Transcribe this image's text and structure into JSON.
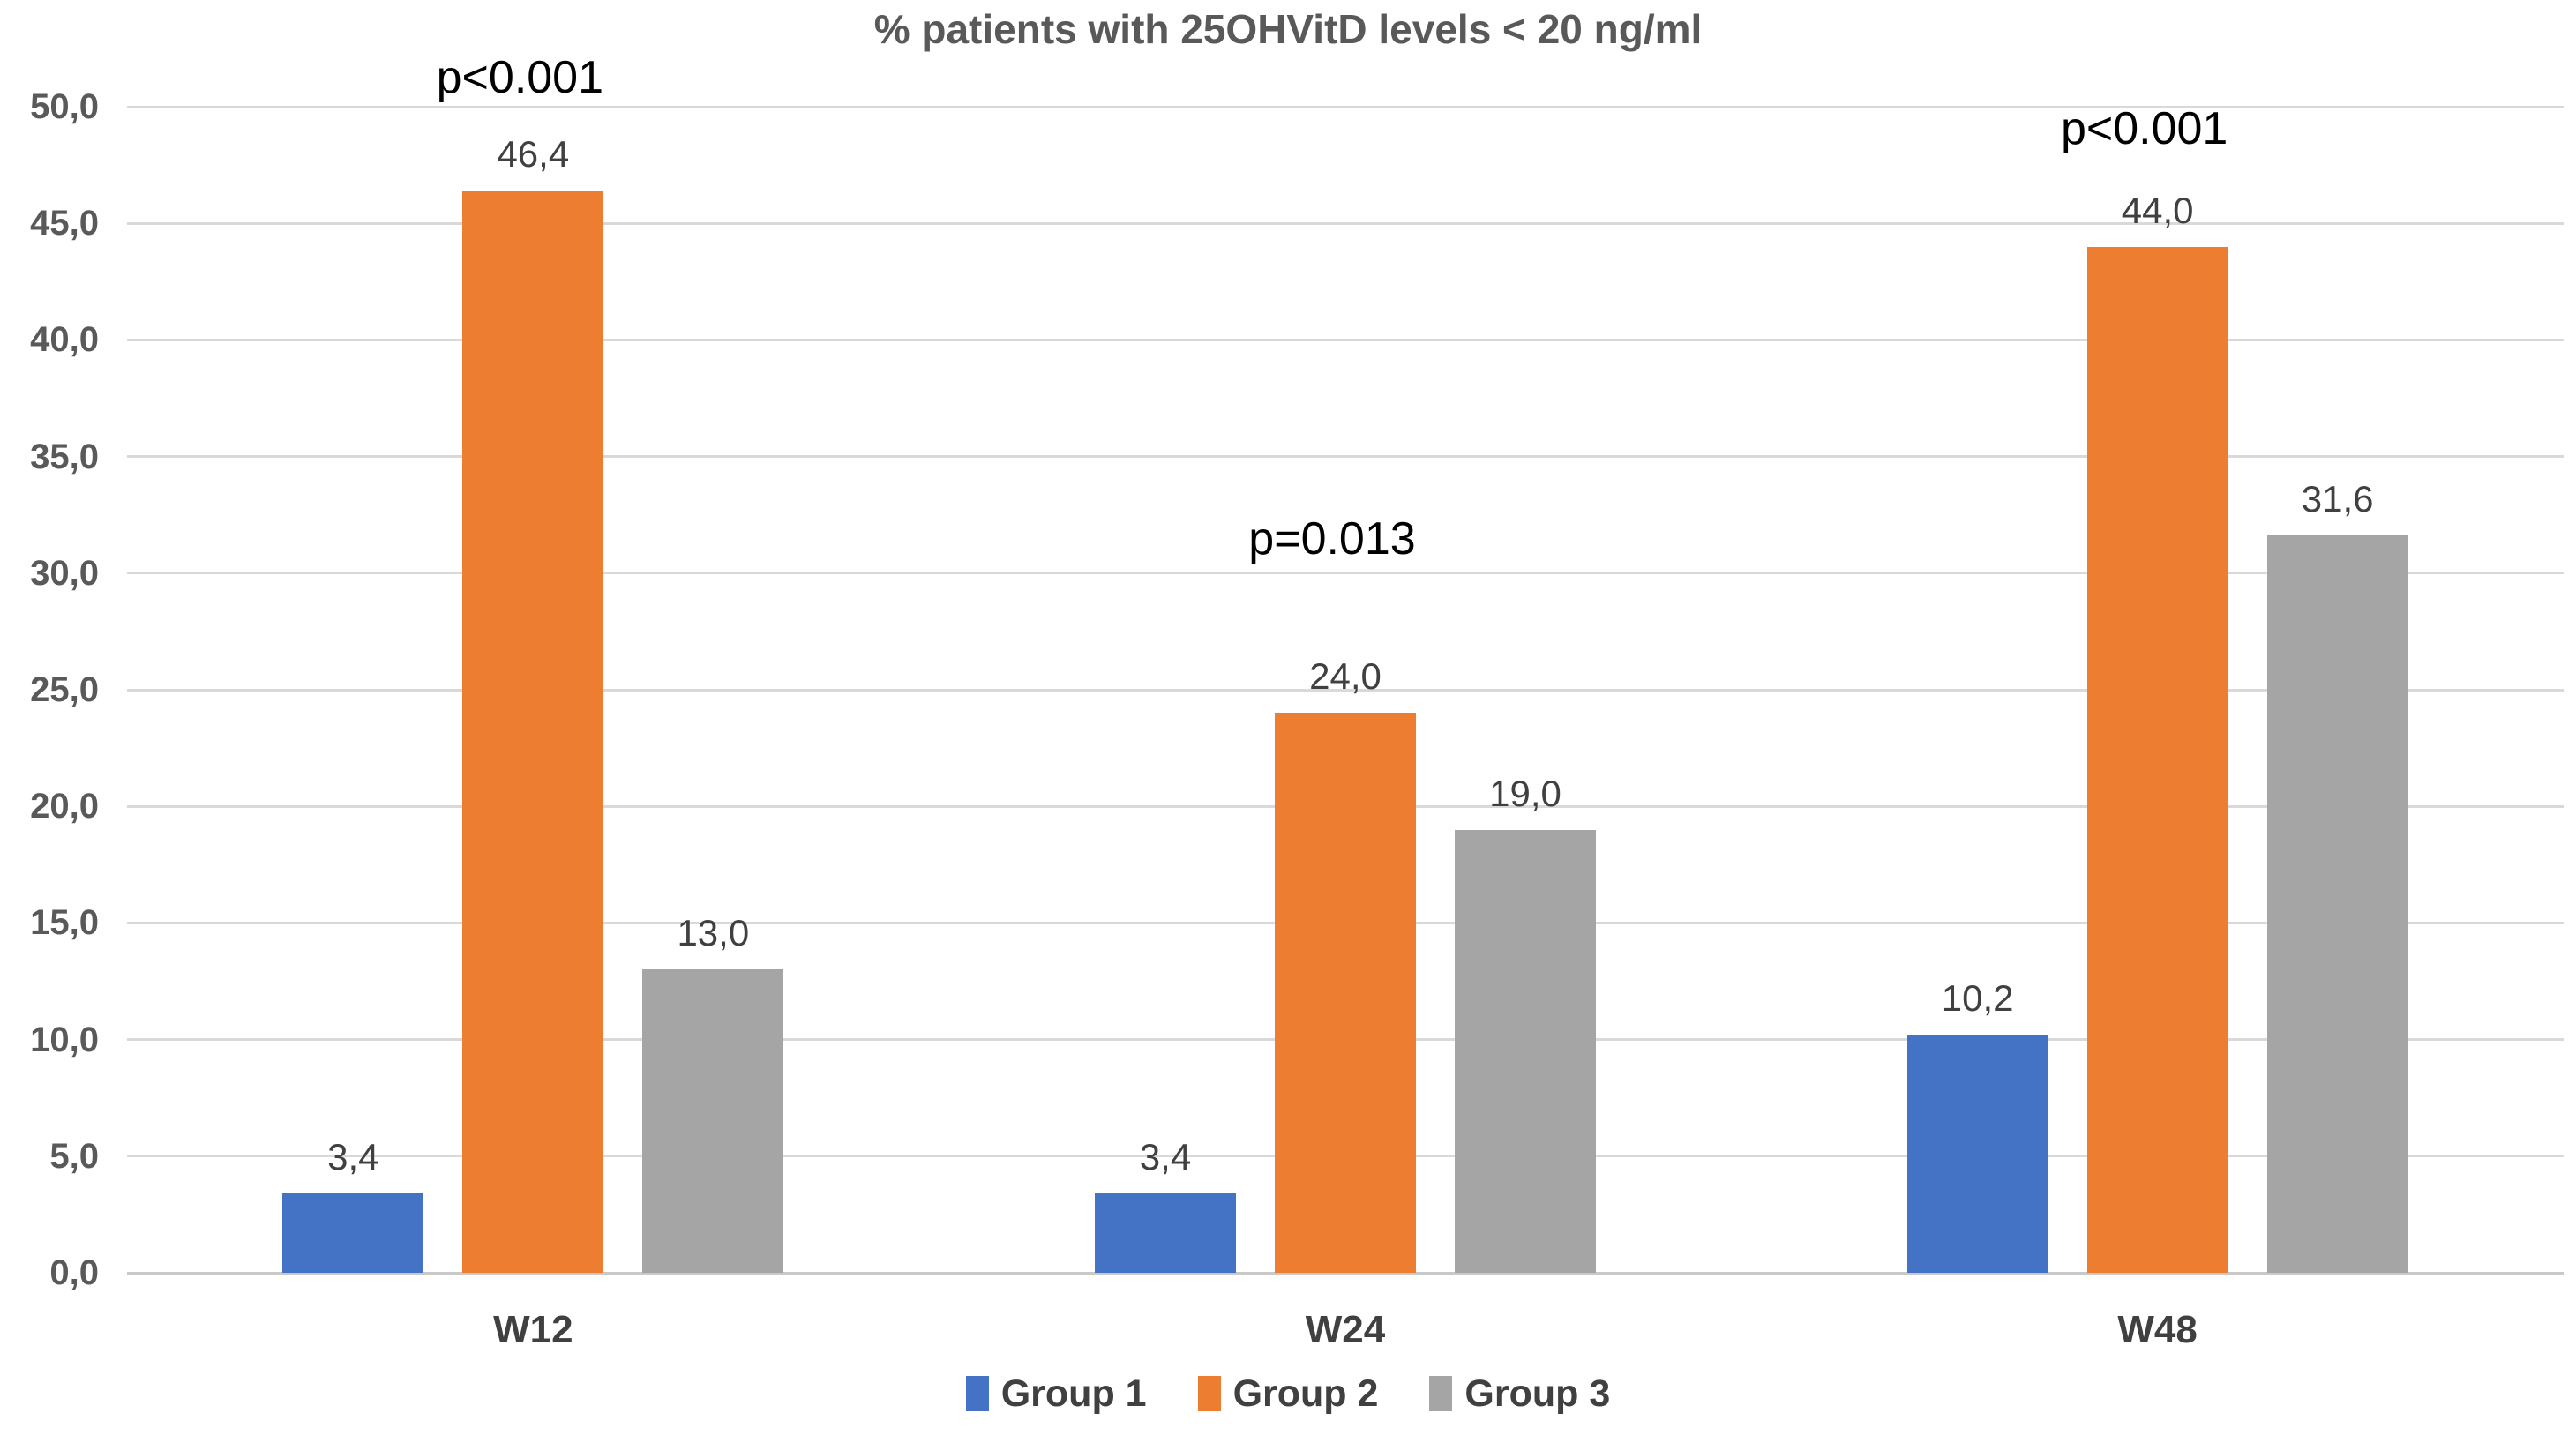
{
  "chart_data": {
    "type": "bar",
    "title": "% patients with 25OHVitD levels < 20 ng/ml",
    "categories": [
      "W12",
      "W24",
      "W48"
    ],
    "series": [
      {
        "name": "Group 1",
        "color": "#4472C4",
        "values": [
          3.4,
          3.4,
          10.2
        ],
        "value_labels": [
          "3,4",
          "3,4",
          "10,2"
        ]
      },
      {
        "name": "Group 2",
        "color": "#ED7D31",
        "values": [
          46.4,
          24.0,
          44.0
        ],
        "value_labels": [
          "46,4",
          "24,0",
          "44,0"
        ]
      },
      {
        "name": "Group 3",
        "color": "#A5A5A5",
        "values": [
          13.0,
          19.0,
          31.6
        ],
        "value_labels": [
          "13,0",
          "19,0",
          "31,6"
        ]
      }
    ],
    "annotations": [
      {
        "text": "p<0.001",
        "category": "W12",
        "anchor_value": 50.2
      },
      {
        "text": "p=0.013",
        "category": "W24",
        "anchor_value": 30.4
      },
      {
        "text": "p<0.001",
        "category": "W48",
        "anchor_value": 48.0
      }
    ],
    "y_axis": {
      "min": 0,
      "max": 50,
      "step": 5,
      "decimal_separator": ",",
      "tick_labels": [
        "0,0",
        "5,0",
        "10,0",
        "15,0",
        "20,0",
        "25,0",
        "30,0",
        "35,0",
        "40,0",
        "45,0",
        "50,0"
      ]
    },
    "grid": true,
    "legend": {
      "position": "bottom",
      "entries": [
        "Group 1",
        "Group 2",
        "Group 3"
      ]
    },
    "styles": {
      "title_color": "#595959",
      "axis_label_color": "#595959",
      "data_label_color": "#404040",
      "category_label_color": "#404040",
      "annotation_color": "#000000",
      "gridline_color": "#D9D9D9",
      "background": "#FFFFFF"
    }
  }
}
